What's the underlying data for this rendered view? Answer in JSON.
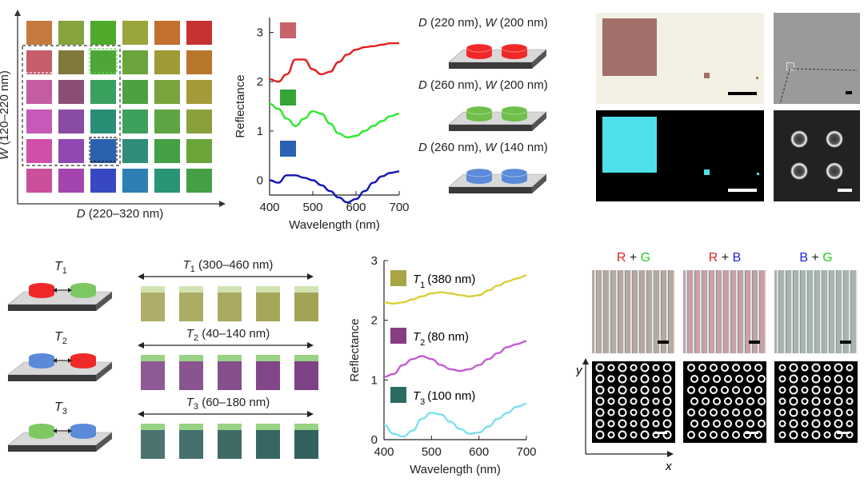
{
  "panel_a": {
    "y_axis_label_var": "W",
    "y_axis_label_range": "(120–220 nm)",
    "x_axis_label_var": "D",
    "x_axis_label_range": "(220–320 nm)",
    "swatches": [
      [
        "#c47a3f",
        "#86a33c",
        "#4faa2c",
        "#9aa53c",
        "#c2702f",
        "#c63131"
      ],
      [
        "#c65d6a",
        "#7f7a3c",
        "#4fa638",
        "#6ba43a",
        "#9f9a38",
        "#b8762c"
      ],
      [
        "#c35ca3",
        "#8b4f76",
        "#3aa05e",
        "#4ea140",
        "#7ba33d",
        "#a59a3a"
      ],
      [
        "#c759b8",
        "#8a4ca2",
        "#2a8e77",
        "#3da05b",
        "#5fa442",
        "#8aa03c"
      ],
      [
        "#d04fa8",
        "#8f49b0",
        "#2c62ad",
        "#2f8d7a",
        "#43a045",
        "#6ca43a"
      ],
      [
        "#cc4f9a",
        "#a444b0",
        "#3848c3",
        "#2d7fb3",
        "#2a9476",
        "#45a045"
      ]
    ]
  },
  "chart_data": [
    {
      "type": "line",
      "xlabel": "Wavelength (nm)",
      "ylabel": "Reflectance",
      "xlim": [
        400,
        700
      ],
      "ylim": [
        -0.3,
        3.3
      ],
      "xticks": [
        "400",
        "500",
        "600",
        "700"
      ],
      "yticks": [
        "0",
        "1",
        "2",
        "3"
      ],
      "series": [
        {
          "color": "#e02020",
          "swatch": "#c9636b",
          "x": [
            400,
            420,
            440,
            460,
            480,
            500,
            520,
            540,
            560,
            580,
            600,
            620,
            640,
            660,
            680,
            700
          ],
          "y": [
            2.05,
            2.0,
            2.15,
            2.45,
            2.45,
            2.25,
            2.15,
            2.2,
            2.4,
            2.55,
            2.65,
            2.7,
            2.72,
            2.75,
            2.78,
            2.78
          ]
        },
        {
          "color": "#2ee82e",
          "swatch": "#35a635",
          "x": [
            400,
            420,
            440,
            460,
            480,
            500,
            520,
            540,
            560,
            580,
            600,
            620,
            640,
            660,
            680,
            700
          ],
          "y": [
            1.55,
            1.45,
            1.25,
            1.1,
            1.25,
            1.4,
            1.35,
            1.15,
            0.95,
            0.87,
            0.9,
            1.0,
            1.1,
            1.2,
            1.3,
            1.35
          ]
        },
        {
          "color": "#1414b4",
          "swatch": "#2a61b2",
          "x": [
            400,
            420,
            440,
            460,
            480,
            500,
            520,
            540,
            560,
            580,
            600,
            620,
            640,
            660,
            680,
            700
          ],
          "y": [
            0.0,
            -0.05,
            0.1,
            0.1,
            0.05,
            0.0,
            -0.1,
            -0.22,
            -0.35,
            -0.45,
            -0.38,
            -0.22,
            -0.05,
            0.08,
            0.15,
            0.18
          ]
        }
      ]
    },
    {
      "type": "line",
      "xlabel": "Wavelength (nm)",
      "ylabel": "Reflectance",
      "xlim": [
        400,
        700
      ],
      "ylim": [
        0,
        3
      ],
      "xticks": [
        "400",
        "500",
        "600",
        "700"
      ],
      "yticks": [
        "0",
        "1",
        "2",
        "3"
      ],
      "series": [
        {
          "name": "T1 (380 nm)",
          "color": "#d8cf35",
          "swatch": "#a9a545",
          "x": [
            400,
            420,
            440,
            460,
            480,
            500,
            520,
            540,
            560,
            580,
            600,
            620,
            640,
            660,
            680,
            700
          ],
          "y": [
            2.3,
            2.28,
            2.3,
            2.35,
            2.4,
            2.45,
            2.47,
            2.45,
            2.42,
            2.4,
            2.42,
            2.5,
            2.58,
            2.65,
            2.7,
            2.75
          ]
        },
        {
          "name": "T2 (80 nm)",
          "color": "#c35cd0",
          "swatch": "#8a3c83",
          "x": [
            400,
            420,
            440,
            460,
            480,
            500,
            520,
            540,
            560,
            580,
            600,
            620,
            640,
            660,
            680,
            700
          ],
          "y": [
            1.05,
            1.1,
            1.25,
            1.35,
            1.4,
            1.35,
            1.25,
            1.18,
            1.15,
            1.18,
            1.25,
            1.35,
            1.45,
            1.55,
            1.6,
            1.65
          ]
        },
        {
          "name": "T3 (100 nm)",
          "color": "#7ae0ec",
          "swatch": "#2c6b64",
          "x": [
            400,
            420,
            440,
            460,
            480,
            500,
            520,
            540,
            560,
            580,
            600,
            620,
            640,
            660,
            680,
            700
          ],
          "y": [
            0.25,
            0.1,
            0.05,
            0.15,
            0.35,
            0.45,
            0.42,
            0.3,
            0.18,
            0.1,
            0.12,
            0.22,
            0.35,
            0.45,
            0.55,
            0.6
          ]
        }
      ]
    }
  ],
  "panel_c": {
    "items": [
      {
        "label_D": "D",
        "val_D": "(220 nm)",
        "label_W": "W",
        "val_W": "(200 nm)",
        "color": "#f02828"
      },
      {
        "label_D": "D",
        "val_D": "(260 nm)",
        "label_W": "W",
        "val_W": "(200 nm)",
        "color": "#6fbf4a"
      },
      {
        "label_D": "D",
        "val_D": "(260 nm)",
        "label_W": "W",
        "val_W": "(140 nm)",
        "color": "#5a8ad8"
      }
    ]
  },
  "panel_e": {
    "items": [
      {
        "t": "T",
        "sub": "1",
        "left": "#f02828",
        "right": "#7ec864"
      },
      {
        "t": "T",
        "sub": "2",
        "left": "#5a8ad8",
        "right": "#f02828"
      },
      {
        "t": "T",
        "sub": "3",
        "left": "#7ec864",
        "right": "#5a8ad8"
      }
    ]
  },
  "panel_f": {
    "rows": [
      {
        "t": "T",
        "sub": "1",
        "range": "(300–460 nm)",
        "color": "#a0a050",
        "strip": "#c4dc9c"
      },
      {
        "t": "T",
        "sub": "2",
        "range": "(40–140 nm)",
        "color": "#7a3c82",
        "strip": "#7ec864"
      },
      {
        "t": "T",
        "sub": "3",
        "range": "(60–180 nm)",
        "color": "#2c5c58",
        "strip": "#7ec864"
      }
    ]
  },
  "panel_h": {
    "headers": [
      {
        "a": "R",
        "op": " + ",
        "b": "G",
        "ca": "#e02020",
        "cb": "#24c824"
      },
      {
        "a": "R",
        "op": " + ",
        "b": "B",
        "ca": "#e02020",
        "cb": "#2020d8"
      },
      {
        "a": "B",
        "op": " + ",
        "b": "G",
        "ca": "#2020d8",
        "cb": "#24c824"
      }
    ],
    "axis_y": "y",
    "axis_x": "x"
  }
}
